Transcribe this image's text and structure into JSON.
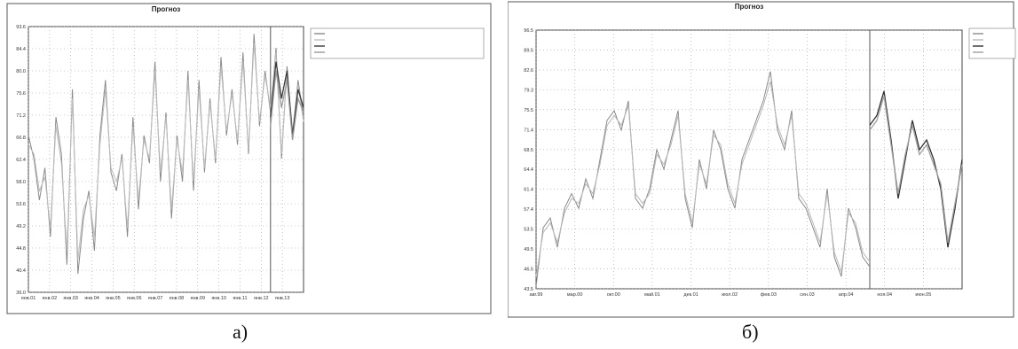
{
  "chart_data": [
    {
      "type": "line",
      "title": "Прогноз",
      "subtitle": "",
      "xlabel": "",
      "ylabel": "",
      "x_ticks": [
        "янв.01",
        "янв.02",
        "янв.03",
        "янв.04",
        "янв.05",
        "янв.06",
        "янв.07",
        "янв.08",
        "янв.09",
        "янв.10",
        "янв.11",
        "янв.12",
        "янв.13"
      ],
      "y_ticks": [
        "93.6",
        "84.4",
        "80.0",
        "75.6",
        "71.2",
        "66.8",
        "62.4",
        "58.0",
        "53.6",
        "49.2",
        "44.8",
        "40.4",
        "36.0"
      ],
      "ylim": [
        36.0,
        93.6
      ],
      "grid": true,
      "legend_position": "top-right",
      "legend": [
        "",
        "",
        "",
        ""
      ],
      "series": [
        {
          "name": "",
          "color": "#8a8a8a",
          "values": [
            70,
            65,
            56,
            63,
            48,
            74,
            66,
            42,
            80,
            40,
            52,
            58,
            45,
            70,
            82,
            62,
            58,
            66,
            48,
            74,
            54,
            70,
            64,
            86,
            60,
            75,
            52,
            70,
            60,
            84,
            58,
            82,
            62,
            78,
            64,
            87,
            70,
            80,
            68,
            88,
            66,
            92,
            72,
            84,
            75,
            89,
            65,
            85,
            70,
            82,
            74
          ]
        },
        {
          "name": "",
          "color": "#bdbdbd",
          "values": [
            68,
            66,
            58,
            61,
            50,
            72,
            64,
            45,
            78,
            43,
            54,
            57,
            48,
            68,
            80,
            63,
            60,
            65,
            50,
            72,
            56,
            69,
            65,
            84,
            62,
            74,
            54,
            69,
            62,
            82,
            60,
            80,
            63,
            77,
            65,
            85,
            71,
            79,
            69,
            86,
            67,
            90,
            73,
            83,
            76,
            88,
            66,
            84,
            71,
            81,
            73
          ]
        },
        {
          "name": "",
          "color": "#3a3a3a",
          "values": [
            null,
            null,
            null,
            null,
            null,
            null,
            null,
            null,
            null,
            null,
            null,
            null,
            null,
            null,
            null,
            null,
            null,
            null,
            null,
            null,
            null,
            null,
            null,
            null,
            null,
            null,
            null,
            null,
            null,
            null,
            null,
            null,
            null,
            null,
            null,
            null,
            null,
            null,
            null,
            null,
            null,
            null,
            null,
            null,
            74,
            86,
            78,
            84,
            70,
            80,
            76
          ]
        },
        {
          "name": "",
          "color": "#9a9a9a",
          "values": [
            null,
            null,
            null,
            null,
            null,
            null,
            null,
            null,
            null,
            null,
            null,
            null,
            null,
            null,
            null,
            null,
            null,
            null,
            null,
            null,
            null,
            null,
            null,
            null,
            null,
            null,
            null,
            null,
            null,
            null,
            null,
            null,
            null,
            null,
            null,
            null,
            null,
            null,
            null,
            null,
            null,
            null,
            null,
            null,
            72,
            84,
            76,
            82,
            69,
            78,
            75
          ]
        }
      ],
      "forecast_start_index": 44
    },
    {
      "type": "line",
      "title": "Прогноз",
      "subtitle": "",
      "xlabel": "",
      "ylabel": "",
      "x_ticks": [
        "авг.99",
        "мар.00",
        "окт.00",
        "май.01",
        "дек.01",
        "июл.02",
        "фев.03",
        "сен.03",
        "апр.04",
        "ноя.04",
        "июн.05"
      ],
      "y_ticks": [
        "96.5",
        "89.5",
        "82.6",
        "79.3",
        "75.5",
        "71.4",
        "68.5",
        "64.4",
        "61.4",
        "57.4",
        "53.5",
        "49.5",
        "46.5",
        "43.5"
      ],
      "ylim": [
        43.5,
        96.5
      ],
      "grid": true,
      "legend_position": "top-right",
      "legend": [
        "",
        "",
        "",
        ""
      ],
      "series": [
        {
          "name": "",
          "color": "#8a8a8a",
          "values": [
            44,
            56,
            58,
            52,
            60,
            63,
            60,
            66,
            62,
            70,
            78,
            80,
            76,
            82,
            62,
            60,
            64,
            72,
            68,
            74,
            80,
            62,
            56,
            70,
            64,
            76,
            72,
            64,
            60,
            70,
            74,
            78,
            82,
            88,
            76,
            72,
            80,
            62,
            60,
            56,
            52,
            64,
            50,
            46,
            60,
            56,
            50,
            48
          ]
        },
        {
          "name": "",
          "color": "#b8b8b8",
          "values": [
            46,
            55,
            57,
            53,
            59,
            62,
            61,
            65,
            63,
            69,
            77,
            79,
            77,
            81,
            63,
            61,
            63,
            71,
            69,
            73,
            79,
            63,
            57,
            69,
            65,
            75,
            73,
            65,
            61,
            69,
            73,
            77,
            81,
            86,
            77,
            73,
            79,
            63,
            61,
            57,
            53,
            63,
            51,
            47,
            59,
            57,
            51,
            49
          ]
        },
        {
          "name": "",
          "color": "#333333",
          "values": [
            null,
            null,
            null,
            null,
            null,
            null,
            null,
            null,
            null,
            null,
            null,
            null,
            null,
            null,
            null,
            null,
            null,
            null,
            null,
            null,
            null,
            null,
            null,
            null,
            null,
            null,
            null,
            null,
            null,
            null,
            null,
            null,
            null,
            null,
            null,
            null,
            null,
            null,
            null,
            null,
            null,
            null,
            null,
            null,
            null,
            null,
            null,
            77,
            79,
            84,
            74,
            62,
            70,
            78,
            72,
            74,
            70,
            64,
            52,
            60,
            70
          ]
        },
        {
          "name": "",
          "color": "#a0a0a0",
          "values": [
            null,
            null,
            null,
            null,
            null,
            null,
            null,
            null,
            null,
            null,
            null,
            null,
            null,
            null,
            null,
            null,
            null,
            null,
            null,
            null,
            null,
            null,
            null,
            null,
            null,
            null,
            null,
            null,
            null,
            null,
            null,
            null,
            null,
            null,
            null,
            null,
            null,
            null,
            null,
            null,
            null,
            null,
            null,
            null,
            null,
            null,
            null,
            76,
            78,
            83,
            73,
            63,
            71,
            77,
            71,
            73,
            69,
            65,
            53,
            61,
            69
          ]
        }
      ],
      "forecast_start_index": 47
    }
  ],
  "captions": {
    "a": "а)",
    "b": "б)"
  }
}
